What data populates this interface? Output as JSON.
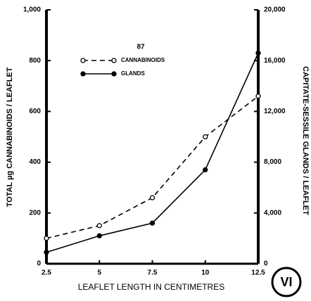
{
  "chart_data": {
    "type": "line",
    "legend_title": "87",
    "xlabel": "LEAFLET LENGTH IN CENTIMETRES",
    "ylabel": "TOTAL µg CANNABINOIDS / LEAFLET",
    "y2label": "CAPITATE-SESSILE GLANDS / LEAFLET",
    "annotation": "VI",
    "x": [
      2.5,
      5,
      7.5,
      10,
      12.5
    ],
    "series": [
      {
        "name": "CANNABINOIDS",
        "color": "#000000",
        "linestyle": "dashed",
        "marker": "open",
        "values": [
          100,
          150,
          260,
          500,
          660
        ]
      },
      {
        "name": "GLANDS",
        "color": "#000000",
        "linestyle": "solid",
        "marker": "filled",
        "axis": "y2",
        "values": [
          900,
          2200,
          3200,
          7400,
          16600
        ]
      }
    ],
    "xlim": [
      2.5,
      12.5
    ],
    "xticks": [
      2.5,
      5,
      7.5,
      10,
      12.5
    ],
    "ylim": [
      0,
      1000
    ],
    "yticks": [
      0,
      200,
      400,
      600,
      800,
      {
        "value": 1000,
        "label": "1,000"
      }
    ],
    "y2lim": [
      0,
      20000
    ],
    "y2ticks": [
      0,
      {
        "value": 4000,
        "label": "4,000"
      },
      {
        "value": 8000,
        "label": "8,000"
      },
      {
        "value": 12000,
        "label": "12,000"
      },
      {
        "value": 16000,
        "label": "16,000"
      },
      {
        "value": 20000,
        "label": "20,000"
      }
    ],
    "grid": false
  }
}
